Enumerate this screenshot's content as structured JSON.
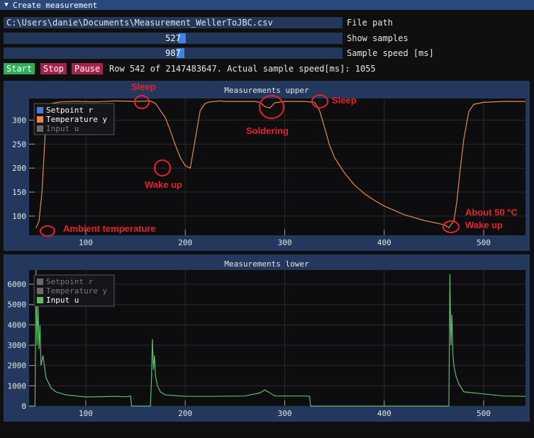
{
  "window": {
    "title": "Create measurement"
  },
  "controls": {
    "file_path_value": "C:\\Users\\danie\\Documents\\Measurement_WellerToJBC.csv",
    "file_path_label": "File path",
    "show_samples_value": "527",
    "show_samples_label": "Show samples",
    "sample_speed_value": "987",
    "sample_speed_label": "Sample speed [ms]",
    "start_label": "Start",
    "stop_label": "Stop",
    "pause_label": "Pause",
    "status": "Row 542 of 2147483647. Actual sample speed[ms]: 1055"
  },
  "colors": {
    "setpoint": "#4a7fd0",
    "temperature": "#e8894a",
    "input": "#5bbf6a",
    "disabled": "#6a6a6a",
    "annotation": "#e8232a"
  },
  "chart_data": [
    {
      "type": "line",
      "title": "Measurements upper",
      "xlim": [
        43,
        542
      ],
      "ylim": [
        60,
        345
      ],
      "x_ticks": [
        100,
        200,
        300,
        400,
        500
      ],
      "y_ticks": [
        100,
        150,
        200,
        250,
        300
      ],
      "legend": [
        "Setpoint r",
        "Temperature y",
        "Input u"
      ],
      "legend_enabled": [
        true,
        true,
        false
      ],
      "legend_placement": "top-left",
      "grid": true,
      "series": [
        {
          "name": "Temperature y",
          "x": [
            50,
            53,
            56,
            60,
            66,
            75,
            90,
            110,
            130,
            150,
            165,
            170,
            175,
            180,
            185,
            190,
            195,
            200,
            205,
            210,
            215,
            220,
            225,
            230,
            235,
            240,
            255,
            270,
            275,
            280,
            285,
            290,
            300,
            320,
            330,
            335,
            340,
            345,
            350,
            360,
            370,
            380,
            390,
            400,
            420,
            440,
            460,
            465,
            470,
            473,
            476,
            480,
            485,
            490,
            500,
            520,
            542
          ],
          "y": [
            75,
            90,
            150,
            300,
            335,
            338,
            339,
            338,
            340,
            339,
            340,
            335,
            320,
            305,
            278,
            248,
            222,
            205,
            200,
            260,
            320,
            335,
            338,
            339,
            340,
            339,
            339,
            339,
            337,
            328,
            325,
            336,
            339,
            339,
            337,
            320,
            285,
            248,
            222,
            190,
            165,
            147,
            133,
            121,
            103,
            91,
            82,
            76,
            90,
            130,
            190,
            260,
            318,
            333,
            337,
            339,
            339
          ]
        }
      ],
      "annotations": [
        {
          "text": "Sleep",
          "x": 154,
          "y": 351
        },
        {
          "text": "Soldering",
          "x": 278,
          "y": 312
        },
        {
          "text": "Sleep",
          "x": 344,
          "y": 341
        },
        {
          "text": "Wake up",
          "x": 177,
          "y": 176
        },
        {
          "text": "Ambient temperature",
          "x": 72,
          "y": 80
        },
        {
          "text": "About 50 °C",
          "x": 483,
          "y": 100
        },
        {
          "text": "Wake up",
          "x": 483,
          "y": 80
        }
      ]
    },
    {
      "type": "line",
      "title": "Measurements lower",
      "xlim": [
        43,
        542
      ],
      "ylim": [
        0,
        6700
      ],
      "x_ticks": [
        100,
        200,
        300,
        400,
        500
      ],
      "y_ticks": [
        0,
        1000,
        2000,
        3000,
        4000,
        5000,
        6000
      ],
      "legend": [
        "Setpoint r",
        "Temperature y",
        "Input u"
      ],
      "legend_enabled": [
        false,
        false,
        true
      ],
      "legend_placement": "top-left",
      "grid": true,
      "series": [
        {
          "name": "Input u",
          "x": [
            43,
            49,
            50,
            51,
            52,
            53,
            54,
            55,
            57,
            60,
            65,
            70,
            80,
            100,
            130,
            140,
            145,
            146,
            165,
            166,
            167,
            168,
            169,
            170,
            172,
            175,
            180,
            200,
            230,
            260,
            275,
            280,
            285,
            290,
            320,
            325,
            326,
            465,
            466,
            467,
            468,
            469,
            470,
            472,
            475,
            480,
            500,
            520,
            542
          ],
          "y": [
            0,
            0,
            6700,
            3000,
            5000,
            2800,
            4000,
            2000,
            2500,
            1400,
            900,
            700,
            550,
            450,
            480,
            460,
            500,
            0,
            0,
            1200,
            3300,
            1800,
            2500,
            1500,
            1000,
            700,
            550,
            480,
            480,
            500,
            650,
            800,
            650,
            500,
            500,
            480,
            0,
            0,
            6500,
            3000,
            4500,
            2500,
            2000,
            1500,
            1100,
            700,
            600,
            500,
            480
          ]
        }
      ]
    }
  ]
}
